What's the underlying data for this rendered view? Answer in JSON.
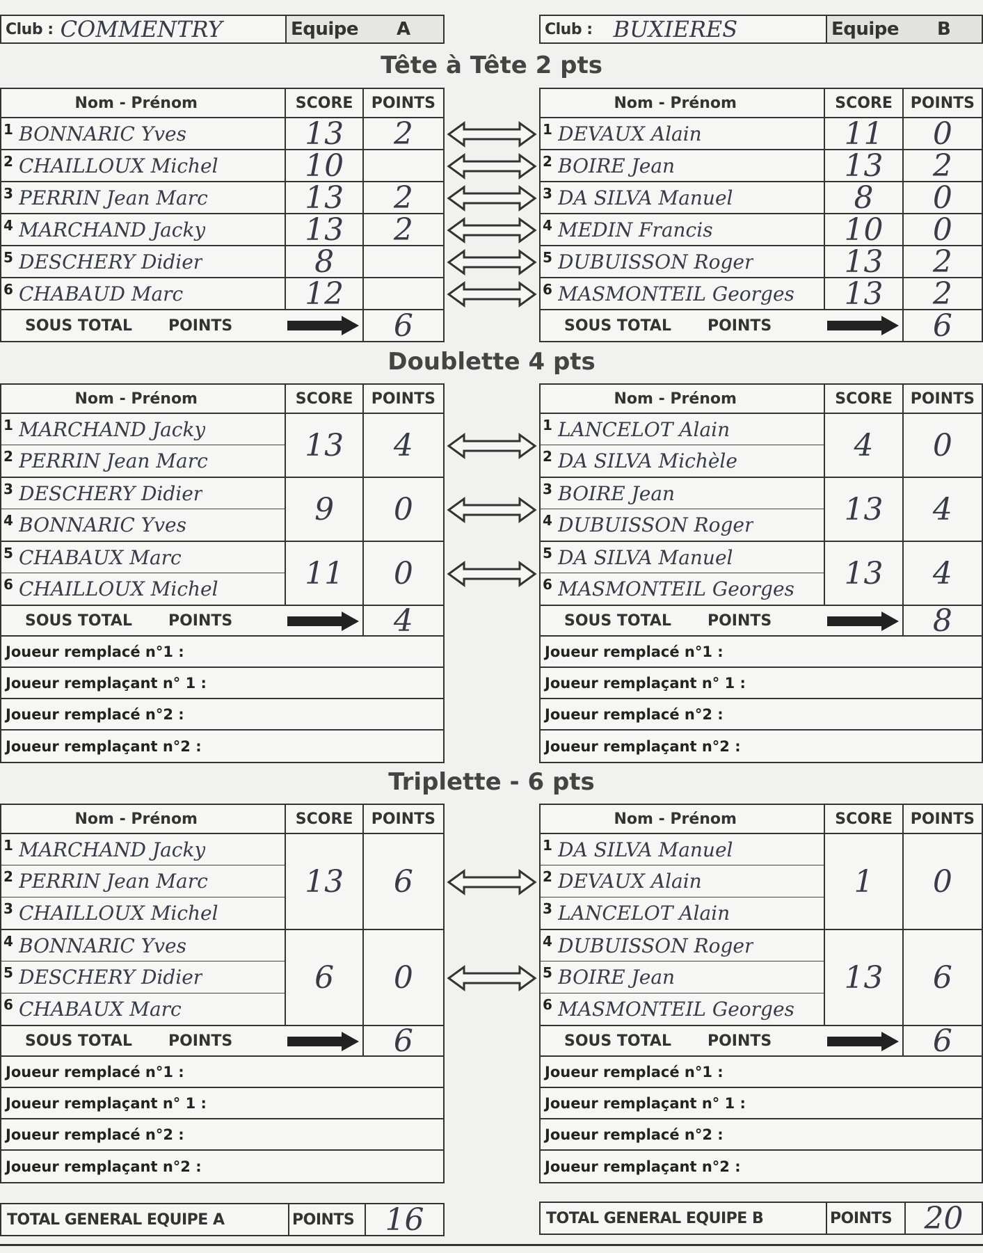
{
  "header": {
    "left": {
      "club_label": "Club :",
      "club": "COMMENTRY",
      "equipe_label": "Equipe",
      "equipe": "A"
    },
    "right": {
      "club_label": "Club :",
      "club": "BUXIERES",
      "equipe_label": "Equipe",
      "equipe": "B"
    }
  },
  "labels": {
    "name_col": "Nom - Prénom",
    "score_col": "SCORE",
    "points_col": "POINTS",
    "sous_total": "SOUS TOTAL",
    "sous_total_points": "POINTS",
    "row_numbers": [
      "1",
      "2",
      "3",
      "4",
      "5",
      "6"
    ],
    "replacements": [
      "Joueur remplacé n°1 :",
      "Joueur remplaçant n° 1 :",
      "Joueur remplacé n°2 :",
      "Joueur remplaçant n°2 :"
    ]
  },
  "sections": [
    {
      "title": "Tête à Tête 2 pts",
      "left": {
        "groups": [
          {
            "players": [
              "BONNARIC Yves"
            ],
            "score": "13",
            "points": "2"
          },
          {
            "players": [
              "CHAILLOUX Michel"
            ],
            "score": "10",
            "points": ""
          },
          {
            "players": [
              "PERRIN Jean Marc"
            ],
            "score": "13",
            "points": "2"
          },
          {
            "players": [
              "MARCHAND Jacky"
            ],
            "score": "13",
            "points": "2"
          },
          {
            "players": [
              "DESCHERY Didier"
            ],
            "score": "8",
            "points": ""
          },
          {
            "players": [
              "CHABAUD Marc"
            ],
            "score": "12",
            "points": ""
          }
        ],
        "subtotal": "6"
      },
      "right": {
        "groups": [
          {
            "players": [
              "DEVAUX Alain"
            ],
            "score": "11",
            "points": "0"
          },
          {
            "players": [
              "BOIRE Jean"
            ],
            "score": "13",
            "points": "2"
          },
          {
            "players": [
              "DA SILVA Manuel"
            ],
            "score": "8",
            "points": "0"
          },
          {
            "players": [
              "MEDIN Francis"
            ],
            "score": "10",
            "points": "0"
          },
          {
            "players": [
              "DUBUISSON Roger"
            ],
            "score": "13",
            "points": "2"
          },
          {
            "players": [
              "MASMONTEIL Georges"
            ],
            "score": "13",
            "points": "2"
          }
        ],
        "subtotal": "6"
      }
    },
    {
      "title": "Doublette 4 pts",
      "left": {
        "groups": [
          {
            "players": [
              "MARCHAND Jacky",
              "PERRIN Jean Marc"
            ],
            "score": "13",
            "points": "4"
          },
          {
            "players": [
              "DESCHERY Didier",
              "BONNARIC Yves"
            ],
            "score": "9",
            "points": "0"
          },
          {
            "players": [
              "CHABAUX Marc",
              "CHAILLOUX Michel"
            ],
            "score": "11",
            "points": "0"
          }
        ],
        "subtotal": "4"
      },
      "right": {
        "groups": [
          {
            "players": [
              "LANCELOT Alain",
              "DA SILVA Michèle"
            ],
            "score": "4",
            "points": "0"
          },
          {
            "players": [
              "BOIRE Jean",
              "DUBUISSON Roger"
            ],
            "score": "13",
            "points": "4"
          },
          {
            "players": [
              "DA SILVA Manuel",
              "MASMONTEIL Georges"
            ],
            "score": "13",
            "points": "4"
          }
        ],
        "subtotal": "8"
      }
    },
    {
      "title": "Triplette - 6 pts",
      "left": {
        "groups": [
          {
            "players": [
              "MARCHAND Jacky",
              "PERRIN Jean Marc",
              "CHAILLOUX Michel"
            ],
            "score": "13",
            "points": "6"
          },
          {
            "players": [
              "BONNARIC Yves",
              "DESCHERY Didier",
              "CHABAUX Marc"
            ],
            "score": "6",
            "points": "0"
          }
        ],
        "subtotal": "6"
      },
      "right": {
        "groups": [
          {
            "players": [
              "DA SILVA Manuel",
              "DEVAUX Alain",
              "LANCELOT Alain"
            ],
            "score": "1",
            "points": "0"
          },
          {
            "players": [
              "DUBUISSON Roger",
              "BOIRE Jean",
              "MASMONTEIL Georges"
            ],
            "score": "13",
            "points": "6"
          }
        ],
        "subtotal": "6"
      }
    }
  ],
  "totals": {
    "left": {
      "label": "TOTAL GENERAL EQUIPE  A",
      "points_label": "POINTS",
      "points": "16"
    },
    "right": {
      "label": "TOTAL GENERAL EQUIPE  B",
      "points_label": "POINTS",
      "points": "20"
    }
  }
}
